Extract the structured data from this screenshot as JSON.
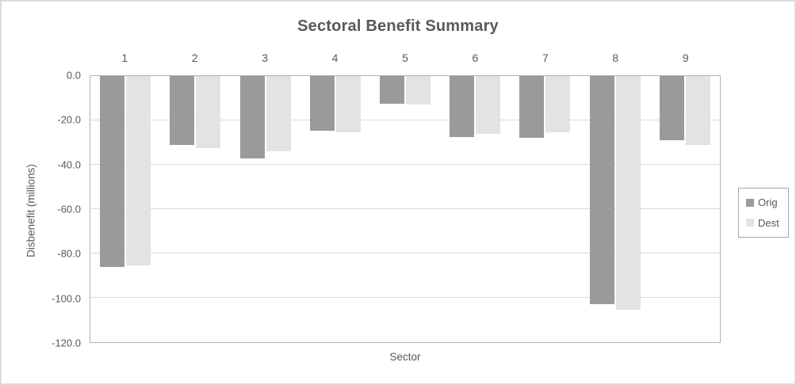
{
  "window": {
    "background": "#ffffff",
    "frame_border_color": "#dcdcdc"
  },
  "chart_data": {
    "type": "bar",
    "title": "Sectoral Benefit Summary",
    "xlabel": "Sector",
    "ylabel": "Disbenefit (millions)",
    "categories": [
      "1",
      "2",
      "3",
      "4",
      "5",
      "6",
      "7",
      "8",
      "9"
    ],
    "series": [
      {
        "name": "Orig",
        "color": "#9a9a9a",
        "values": [
          -86.0,
          -31.0,
          -37.0,
          -24.5,
          -12.5,
          -27.5,
          -28.0,
          -103.0,
          -29.0
        ]
      },
      {
        "name": "Dest",
        "color": "#e3e3e3",
        "values": [
          -85.5,
          -32.5,
          -34.0,
          -25.5,
          -13.0,
          -26.0,
          -25.5,
          -105.5,
          -31.0
        ]
      }
    ],
    "ylim": [
      -120,
      0
    ],
    "ytick_labels": [
      "0.0",
      "-20.0",
      "-40.0",
      "-60.0",
      "-80.0",
      "-100.0",
      "-120.0"
    ],
    "grid": true,
    "legend_position": "right",
    "bar_direction": "downward-from-zero",
    "styles": {
      "text_color": "#595959",
      "gridline_color": "#d9d9d9",
      "plot_border_color": "#b3b3b3",
      "legend_border_color": "#a6a6a6"
    }
  }
}
